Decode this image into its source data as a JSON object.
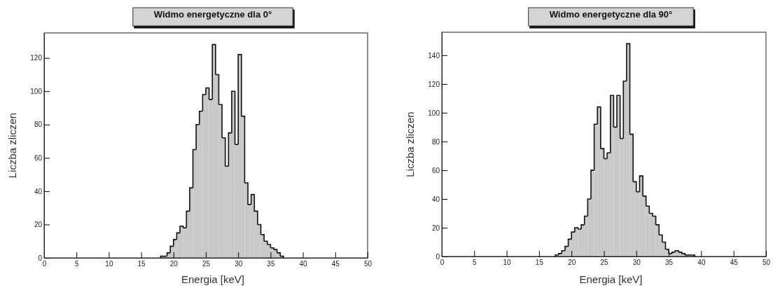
{
  "chart_data": [
    {
      "type": "histogram",
      "title": "Widmo energetyczne dla 0°",
      "xlabel": "Energia [keV]",
      "ylabel": "Liczba zliczen",
      "color": "#c8c8c8",
      "xlim": [
        0,
        50
      ],
      "xticks": [
        0,
        5,
        10,
        15,
        20,
        25,
        30,
        35,
        40,
        45,
        50
      ],
      "ylim": [
        0,
        135
      ],
      "yticks": [
        0,
        20,
        40,
        60,
        80,
        100,
        120
      ],
      "bins": [
        18,
        18.5,
        19,
        19.5,
        20,
        20.5,
        21,
        21.5,
        22,
        22.5,
        23,
        23.5,
        24,
        24.5,
        25,
        25.5,
        26,
        26.5,
        27,
        27.5,
        28,
        28.5,
        29,
        29.5,
        30,
        30.5,
        31,
        31.5,
        32,
        32.5,
        33,
        33.5,
        34,
        34.5,
        35,
        35.5,
        36,
        36.5,
        37
      ],
      "values": [
        1,
        1,
        3,
        7,
        11,
        15,
        19,
        18,
        28,
        42,
        65,
        80,
        88,
        98,
        102,
        95,
        128,
        110,
        92,
        72,
        55,
        75,
        100,
        68,
        122,
        85,
        45,
        32,
        38,
        28,
        20,
        14,
        10,
        8,
        6,
        5,
        3,
        1
      ]
    },
    {
      "type": "histogram",
      "title": "Widmo energetyczne dla 90°",
      "xlabel": "Energia [keV]",
      "ylabel": "Liczba zliczen",
      "color": "#c8c8c8",
      "xlim": [
        0,
        50
      ],
      "xticks": [
        0,
        5,
        10,
        15,
        20,
        25,
        30,
        35,
        40,
        45,
        50
      ],
      "ylim": [
        0,
        156
      ],
      "yticks": [
        0,
        20,
        40,
        60,
        80,
        100,
        120,
        140
      ],
      "bins": [
        17.5,
        18,
        18.5,
        19,
        19.5,
        20,
        20.5,
        21,
        21.5,
        22,
        22.5,
        23,
        23.5,
        24,
        24.5,
        25,
        25.5,
        26,
        26.5,
        27,
        27.5,
        28,
        28.5,
        29,
        29.5,
        30,
        30.5,
        31,
        31.5,
        32,
        32.5,
        33,
        33.5,
        34,
        34.5,
        35,
        35.5,
        36,
        36.5,
        37,
        37.5,
        38,
        38.5,
        39
      ],
      "values": [
        1,
        2,
        4,
        7,
        12,
        17,
        20,
        19,
        22,
        28,
        40,
        60,
        92,
        104,
        75,
        68,
        72,
        112,
        90,
        112,
        82,
        122,
        148,
        85,
        52,
        45,
        56,
        42,
        35,
        30,
        28,
        22,
        15,
        10,
        5,
        2,
        3,
        4,
        3,
        2,
        1,
        1,
        1
      ]
    }
  ]
}
